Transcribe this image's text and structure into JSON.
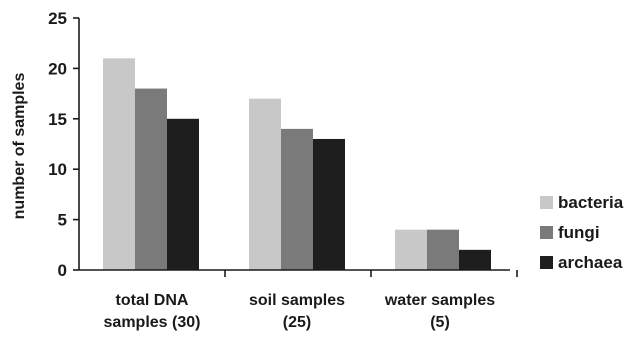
{
  "chart_data": {
    "type": "bar",
    "categories": [
      [
        "total DNA",
        "samples (30)"
      ],
      [
        "soil samples",
        "(25)"
      ],
      [
        "water samples",
        "(5)"
      ]
    ],
    "series": [
      {
        "name": "bacteria",
        "values": [
          21,
          17,
          4
        ],
        "color": "#c8c8c8"
      },
      {
        "name": "fungi",
        "values": [
          18,
          14,
          4
        ],
        "color": "#7a7a7a"
      },
      {
        "name": "archaea",
        "values": [
          15,
          13,
          2
        ],
        "color": "#1e1e1e"
      }
    ],
    "ylabel": "number  of samples",
    "ylim": [
      0,
      25
    ],
    "yticks": [
      0,
      5,
      10,
      15,
      20,
      25
    ],
    "grid": false,
    "legend_position": "right"
  }
}
